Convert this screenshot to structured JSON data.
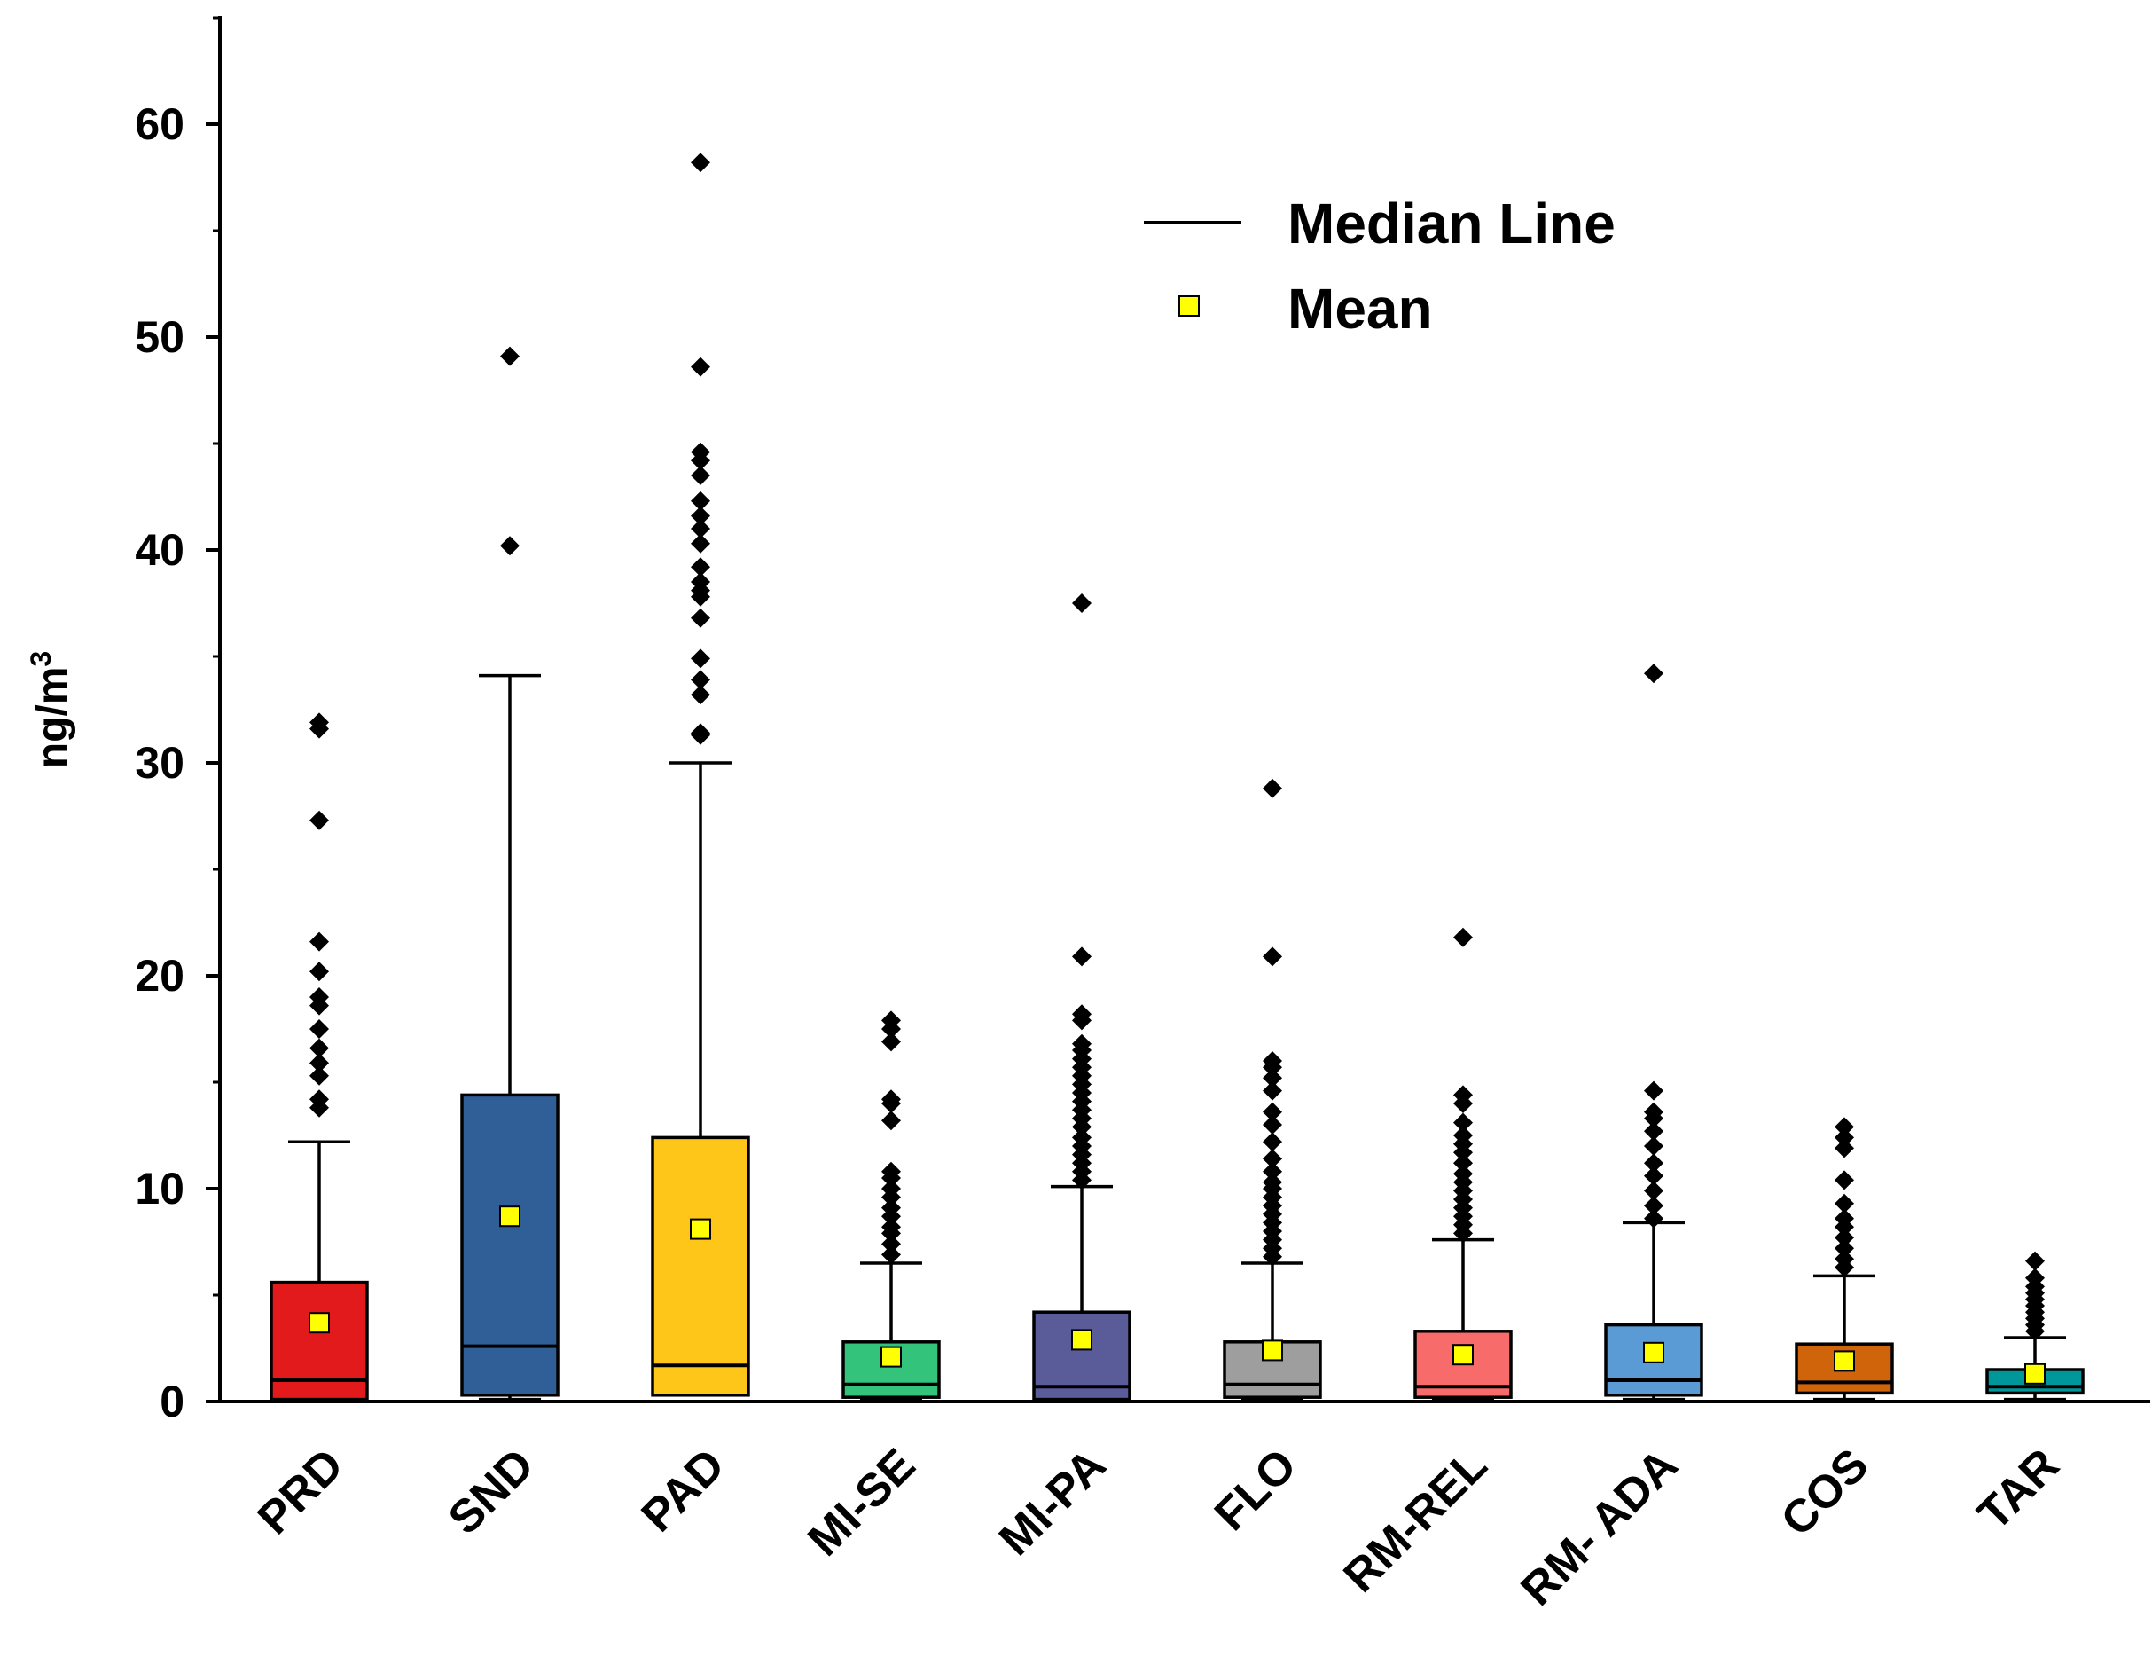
{
  "chart_data": {
    "type": "box",
    "ylabel": "ng/m",
    "ylabel_superscript": "3",
    "ylim": [
      0,
      65
    ],
    "yticks": [
      0,
      10,
      20,
      30,
      40,
      50,
      60
    ],
    "yminor_step": 5,
    "grid": false,
    "legend": {
      "position": "top-right",
      "median_label": "Median Line",
      "mean_label": "Mean"
    },
    "categories": [
      "PRD",
      "SND",
      "PAD",
      "MI-SE",
      "MI-PA",
      "FLO",
      "RM-REL",
      "RM- ADA",
      "COS",
      "TAR"
    ],
    "boxes": [
      {
        "name": "PRD",
        "color": "#e31a1c",
        "whisker_low": 0.1,
        "q1": 0.1,
        "median": 1.0,
        "q3": 5.6,
        "whisker_high": 12.2,
        "mean": 3.7,
        "outliers": [
          13.8,
          14.2,
          15.3,
          15.9,
          16.6,
          17.5,
          18.6,
          19.0,
          20.2,
          21.6,
          27.3,
          31.6,
          31.9
        ]
      },
      {
        "name": "SND",
        "color": "#2f5f96",
        "whisker_low": 0.1,
        "q1": 0.3,
        "median": 2.6,
        "q3": 14.4,
        "whisker_high": 34.1,
        "mean": 8.7,
        "outliers": [
          40.2,
          49.1
        ]
      },
      {
        "name": "PAD",
        "color": "#ffc61a",
        "whisker_low": 0.3,
        "q1": 0.3,
        "median": 1.7,
        "q3": 12.4,
        "whisker_high": 30.0,
        "mean": 8.1,
        "outliers": [
          31.3,
          31.4,
          33.2,
          33.9,
          34.9,
          36.8,
          37.8,
          38.1,
          38.5,
          39.2,
          40.3,
          41.0,
          41.6,
          42.3,
          43.5,
          44.2,
          44.6,
          48.6,
          58.2
        ]
      },
      {
        "name": "MI-SE",
        "color": "#33c37a",
        "whisker_low": 0.1,
        "q1": 0.2,
        "median": 0.8,
        "q3": 2.8,
        "whisker_high": 6.5,
        "mean": 2.1,
        "outliers": [
          6.9,
          7.4,
          7.9,
          8.2,
          8.7,
          9.1,
          9.6,
          10.0,
          10.5,
          10.8,
          13.2,
          14.0,
          14.2,
          16.9,
          17.5,
          17.9
        ]
      },
      {
        "name": "MI-PA",
        "color": "#5a5c9a",
        "whisker_low": 0.0,
        "q1": 0.1,
        "median": 0.7,
        "q3": 4.2,
        "whisker_high": 10.1,
        "mean": 2.9,
        "outliers": [
          10.4,
          10.8,
          11.2,
          11.6,
          12.0,
          12.4,
          12.9,
          13.3,
          13.7,
          14.1,
          14.5,
          14.9,
          15.3,
          15.7,
          16.1,
          16.5,
          16.8,
          17.9,
          18.2,
          20.9,
          37.5
        ]
      },
      {
        "name": "FLO",
        "color": "#9e9e9e",
        "whisker_low": 0.1,
        "q1": 0.2,
        "median": 0.8,
        "q3": 2.8,
        "whisker_high": 6.5,
        "mean": 2.4,
        "outliers": [
          6.8,
          7.2,
          7.6,
          8.0,
          8.4,
          8.8,
          9.2,
          9.6,
          10.0,
          10.3,
          10.8,
          11.4,
          12.2,
          13.0,
          13.6,
          14.6,
          15.2,
          15.7,
          16.0,
          20.9,
          28.8
        ]
      },
      {
        "name": "RM-REL",
        "color": "#f76b6b",
        "whisker_low": 0.1,
        "q1": 0.2,
        "median": 0.7,
        "q3": 3.3,
        "whisker_high": 7.6,
        "mean": 2.2,
        "outliers": [
          7.9,
          8.3,
          8.7,
          9.1,
          9.5,
          9.9,
          10.3,
          10.7,
          11.2,
          11.7,
          12.1,
          12.5,
          13.1,
          14.0,
          14.4,
          21.8
        ]
      },
      {
        "name": "RM- ADA",
        "color": "#5b9bd5",
        "whisker_low": 0.1,
        "q1": 0.3,
        "median": 1.0,
        "q3": 3.6,
        "whisker_high": 8.4,
        "mean": 2.3,
        "outliers": [
          8.6,
          9.2,
          9.9,
          10.6,
          11.2,
          12.0,
          12.7,
          13.3,
          13.6,
          14.6,
          34.2
        ]
      },
      {
        "name": "COS",
        "color": "#d0640a",
        "whisker_low": 0.1,
        "q1": 0.4,
        "median": 0.9,
        "q3": 2.7,
        "whisker_high": 5.9,
        "mean": 1.9,
        "outliers": [
          6.3,
          6.7,
          7.2,
          7.7,
          8.2,
          8.6,
          9.3,
          10.4,
          11.9,
          12.4,
          12.9
        ]
      },
      {
        "name": "TAR",
        "color": "#00979a",
        "whisker_low": 0.1,
        "q1": 0.4,
        "median": 0.7,
        "q3": 1.5,
        "whisker_high": 3.0,
        "mean": 1.3,
        "outliers": [
          3.3,
          3.6,
          3.9,
          4.2,
          4.5,
          4.8,
          5.1,
          5.4,
          5.8,
          6.6
        ]
      }
    ],
    "colors": {
      "mean_marker": "#ffff00",
      "outlier": "#000000",
      "axis": "#000000"
    }
  }
}
